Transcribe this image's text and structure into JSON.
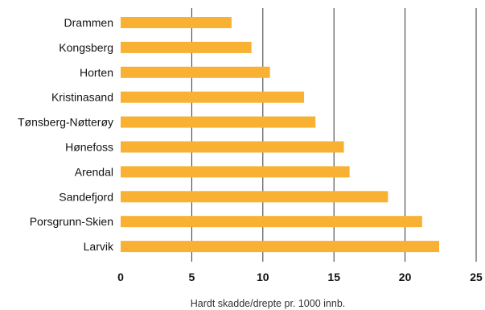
{
  "chart_data": {
    "type": "bar",
    "orientation": "horizontal",
    "title": "",
    "xlabel": "Hardt skadde/drepte pr. 1000 innb.",
    "ylabel": "",
    "categories": [
      "Drammen",
      "Kongsberg",
      "Horten",
      "Kristinasand",
      "Tønsberg-Nøtterøy",
      "Hønefoss",
      "Arendal",
      "Sandefjord",
      "Porsgrunn-Skien",
      "Larvik"
    ],
    "values": [
      7.8,
      9.2,
      10.5,
      12.9,
      13.7,
      15.7,
      16.1,
      18.8,
      21.2,
      22.4
    ],
    "xlim": [
      0,
      25
    ],
    "xticks": [
      0,
      5,
      10,
      15,
      20,
      25
    ],
    "xtick_labels": [
      "0",
      "5",
      "10",
      "15",
      "20",
      "25"
    ],
    "grid": "vertical",
    "legend": "none",
    "colors": {
      "bar": "#F8B133",
      "grid": "#333333",
      "text": "#111111"
    }
  }
}
